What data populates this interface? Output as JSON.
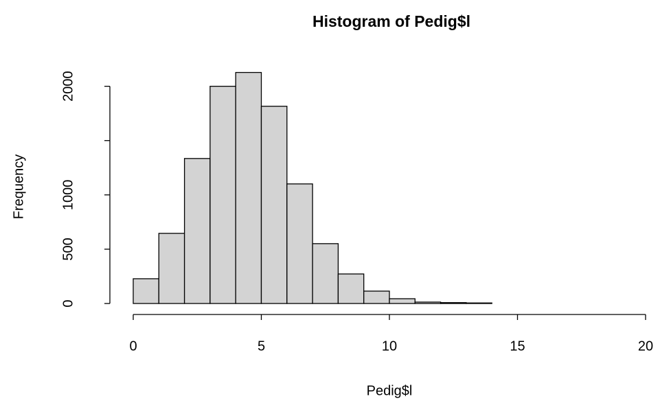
{
  "chart_data": {
    "type": "histogram",
    "title": "Histogram of Pedig$l",
    "x_label": "Pedig$l",
    "y_label": "Frequency",
    "bins": [
      0,
      1,
      2,
      3,
      4,
      5,
      6,
      7,
      8,
      9,
      10,
      11,
      12,
      13,
      14,
      15,
      16,
      17,
      18,
      19,
      20
    ],
    "values": [
      228,
      646,
      1335,
      2000,
      2127,
      1816,
      1101,
      551,
      272,
      114,
      44,
      13,
      8,
      5,
      0,
      0,
      0,
      0,
      0,
      0
    ],
    "color": "#d3d3d3",
    "xlim": [
      0,
      20
    ],
    "xticks": [
      0,
      5,
      10,
      15,
      20
    ],
    "ylim": [
      0,
      2200
    ],
    "yticks": [
      0,
      500,
      1000,
      {
        "value": 1500,
        "label": null
      },
      2000
    ]
  }
}
